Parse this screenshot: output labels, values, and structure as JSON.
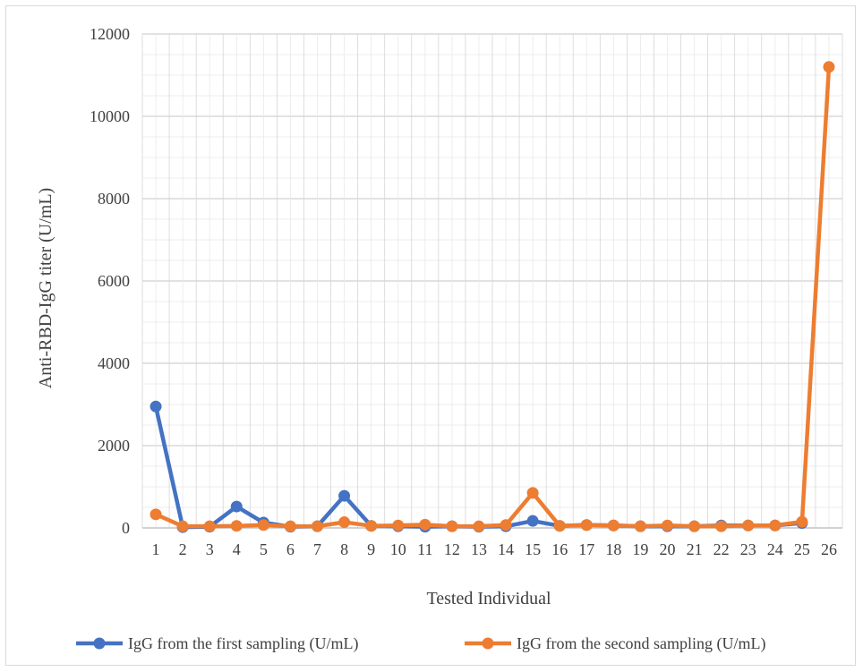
{
  "chart_data": {
    "type": "line",
    "title": "",
    "xlabel": "Tested Individual",
    "ylabel": "Anti-RBD-IgG titer (U/mL)",
    "categories": [
      "1",
      "2",
      "3",
      "4",
      "5",
      "6",
      "7",
      "8",
      "9",
      "10",
      "11",
      "12",
      "13",
      "14",
      "15",
      "16",
      "17",
      "18",
      "19",
      "20",
      "21",
      "22",
      "23",
      "24",
      "25",
      "26"
    ],
    "ylim": [
      0,
      12000
    ],
    "yticks": [
      "0",
      "2000",
      "4000",
      "6000",
      "8000",
      "10000",
      "12000"
    ],
    "grid": true,
    "legend_position": "bottom",
    "series": [
      {
        "name": "IgG from the first sampling (U/mL)",
        "color": "#4472C4",
        "values": [
          2950,
          20,
          30,
          520,
          130,
          30,
          40,
          780,
          50,
          40,
          30,
          40,
          30,
          40,
          170,
          50,
          70,
          60,
          40,
          40,
          40,
          60,
          60,
          60,
          120,
          null
        ]
      },
      {
        "name": "IgG from the second sampling (U/mL)",
        "color": "#ED7D31",
        "values": [
          330,
          40,
          40,
          50,
          70,
          40,
          40,
          140,
          50,
          60,
          80,
          40,
          40,
          70,
          850,
          50,
          70,
          60,
          40,
          60,
          40,
          40,
          60,
          60,
          150,
          11200
        ]
      }
    ]
  }
}
